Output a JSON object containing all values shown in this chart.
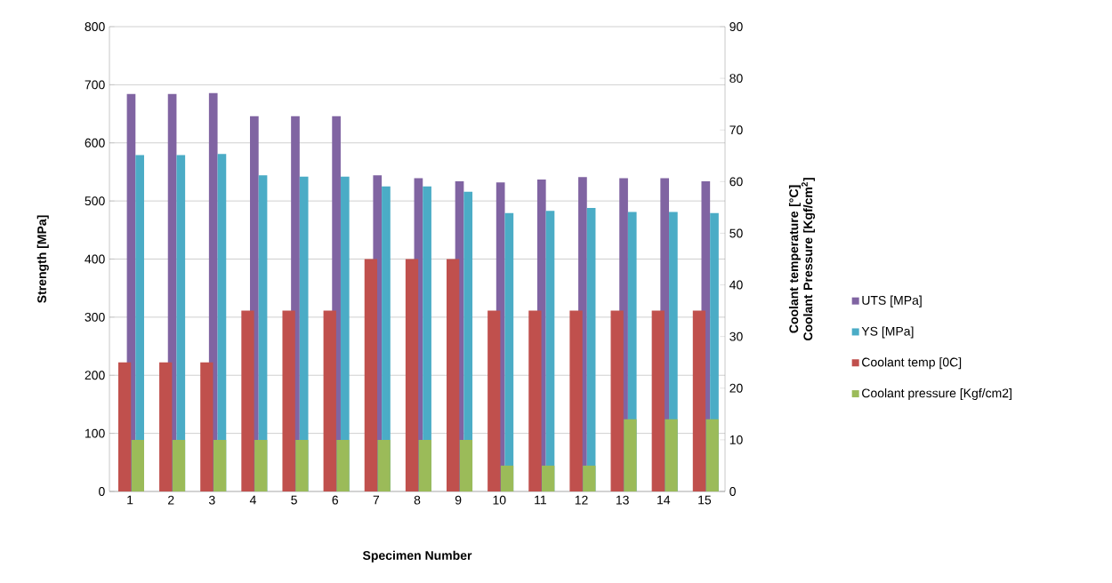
{
  "chart_data": {
    "type": "bar",
    "xlabel": "Specimen Number",
    "ylabel": "Strength [MPa]",
    "y2label": "Coolant temperature [°C] Coolant Pressure [Kgf/cm$^{2}$]",
    "categories": [
      "1",
      "2",
      "3",
      "4",
      "5",
      "6",
      "7",
      "8",
      "9",
      "10",
      "11",
      "12",
      "13",
      "14",
      "15"
    ],
    "series": [
      {
        "name": "UTS [MPa]",
        "color": "#8064a2",
        "values": [
          684,
          684,
          686,
          646,
          646,
          646,
          544,
          539,
          534,
          532,
          537,
          541,
          539,
          539,
          534
        ]
      },
      {
        "name": "YS [MPa]",
        "color": "#4bacc6",
        "values": [
          579,
          579,
          581,
          544,
          542,
          542,
          525,
          525,
          516,
          479,
          483,
          488,
          481,
          481,
          479
        ]
      },
      {
        "name": "Coolant temp  [0C]",
        "color": "#c0504d",
        "axis": "y2",
        "values": [
          25,
          25,
          25,
          35,
          35,
          35,
          45,
          45,
          45,
          35,
          35,
          35,
          35,
          35,
          35
        ]
      },
      {
        "name": "Coolant pressure [Kgf/cm2]",
        "color": "#9bbb59",
        "axis": "y2",
        "values": [
          10,
          10,
          10,
          10,
          10,
          10,
          10,
          10,
          10,
          5,
          5,
          5,
          14,
          14,
          14
        ]
      }
    ],
    "ylim": [
      0,
      800
    ],
    "yticks": [
      0,
      100,
      200,
      300,
      400,
      500,
      600,
      700,
      800
    ],
    "y2lim": [
      0,
      90
    ],
    "y2ticks": [
      0,
      10,
      20,
      30,
      40,
      50,
      60,
      70,
      80,
      90
    ],
    "grid": "y",
    "legend": "right"
  }
}
